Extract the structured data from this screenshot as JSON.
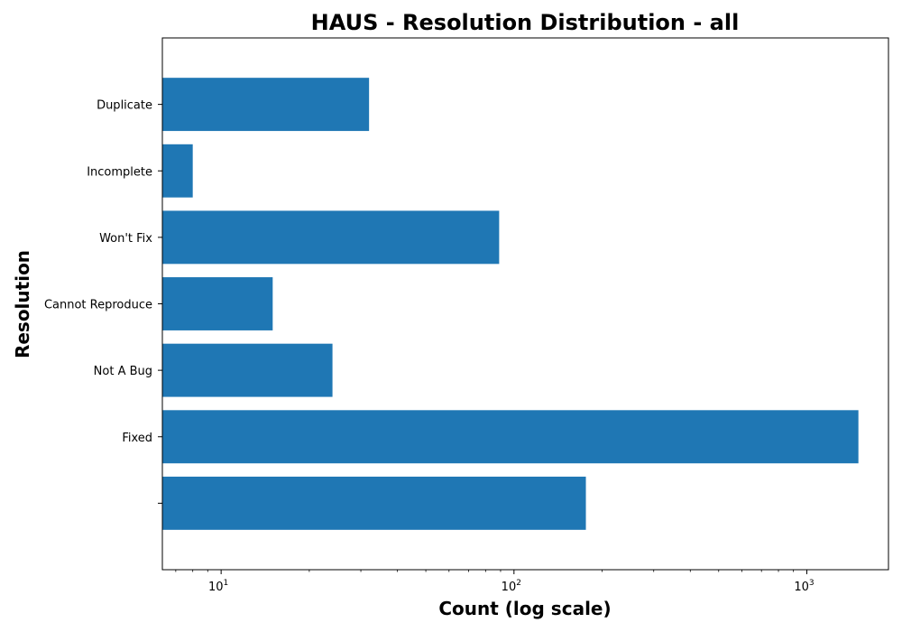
{
  "chart_data": {
    "type": "bar",
    "orientation": "horizontal",
    "title": "HAUS - Resolution Distribution - all",
    "xlabel": "Count (log scale)",
    "ylabel": "Resolution",
    "x_scale": "log",
    "xlim": [
      6.3,
      1900
    ],
    "x_ticks": [
      {
        "base": "10",
        "exp": "1",
        "value": 10
      },
      {
        "base": "10",
        "exp": "2",
        "value": 100
      },
      {
        "base": "10",
        "exp": "3",
        "value": 1000
      }
    ],
    "categories": [
      "",
      "Fixed",
      "Not A Bug",
      "Cannot Reproduce",
      "Won't Fix",
      "Incomplete",
      "Duplicate"
    ],
    "values": [
      176,
      1500,
      24,
      15,
      89,
      8,
      32
    ],
    "color": "#1f77b4",
    "grid": false
  }
}
